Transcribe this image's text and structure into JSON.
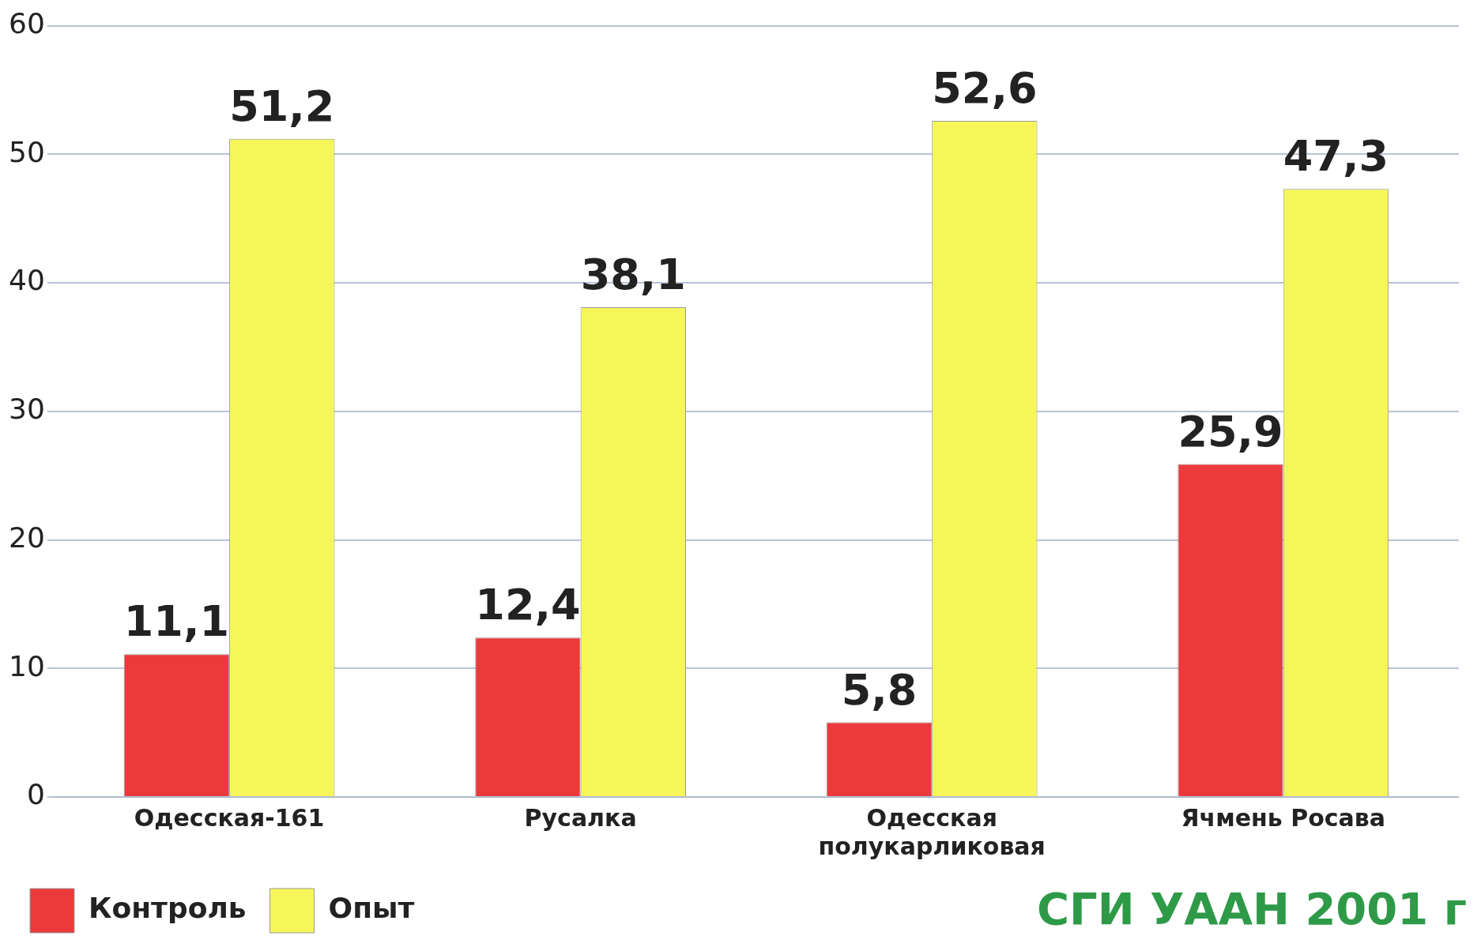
{
  "chart_data": {
    "type": "bar",
    "categories": [
      "Одесская-161",
      "Русалка",
      "Одесская полукарликовая",
      "Ячмень Росава"
    ],
    "series": [
      {
        "name": "Контроль",
        "color": "#ec3a3c",
        "values": [
          11.1,
          12.4,
          5.8,
          25.9
        ],
        "value_labels": [
          "11,1",
          "12,4",
          "5,8",
          "25,9"
        ]
      },
      {
        "name": "Опыт",
        "color": "#f6f65a",
        "values": [
          51.2,
          38.1,
          52.6,
          47.3
        ],
        "value_labels": [
          "51,2",
          "38,1",
          "52,6",
          "47,3"
        ]
      }
    ],
    "ylim": [
      0,
      60
    ],
    "yticks": [
      0,
      10,
      20,
      30,
      40,
      50,
      60
    ],
    "grid": "y",
    "legend": "bottom",
    "annotations": [
      "СГИ УААН 2001 г"
    ]
  }
}
